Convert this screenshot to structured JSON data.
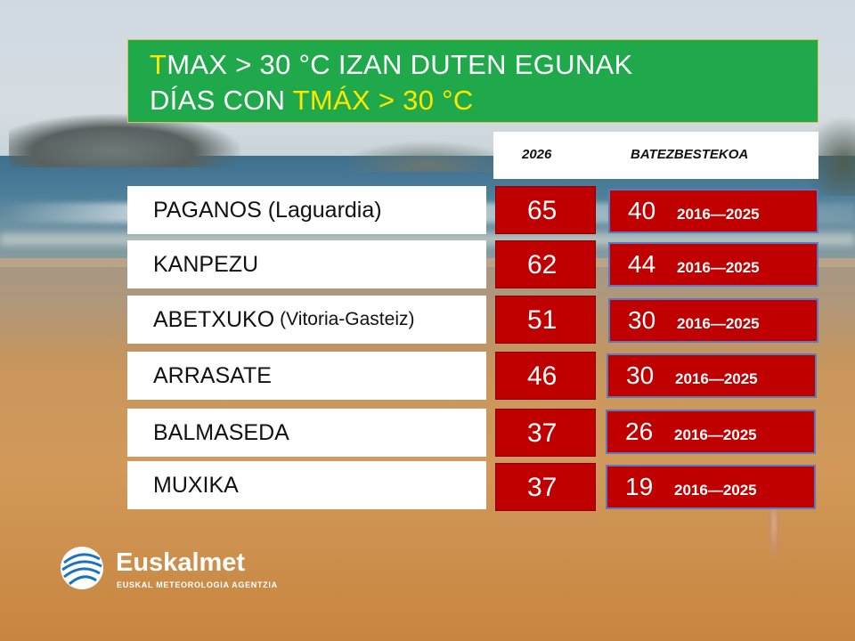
{
  "title": {
    "line1_prefix": "T",
    "line1_rest": "MAX > 30 °C IZAN DUTEN EGUNAK",
    "line2_prefix": "DÍAS CON ",
    "line2_highlight": "TMÁX > 30 °C"
  },
  "header": {
    "year": "2026",
    "average": "BATEZBESTEKOA"
  },
  "rows": [
    {
      "station": "PAGANOS (Laguardia)",
      "sub": "",
      "days": "65",
      "avg": "40",
      "period": "2016—2025"
    },
    {
      "station": "KANPEZU",
      "sub": "",
      "days": "62",
      "avg": "44",
      "period": "2016—2025"
    },
    {
      "station": "ABETXUKO",
      "sub": "(Vitoria-Gasteiz)",
      "days": "51",
      "avg": "30",
      "period": "2016—2025"
    },
    {
      "station": "ARRASATE",
      "sub": "",
      "days": "46",
      "avg": "30",
      "period": "2016—2025"
    },
    {
      "station": "BALMASEDA",
      "sub": "",
      "days": "37",
      "avg": "26",
      "period": "2016—2025"
    },
    {
      "station": "MUXIKA",
      "sub": "",
      "days": "37",
      "avg": "19",
      "period": "2016—2025"
    }
  ],
  "logo": {
    "name": "Euskalmet",
    "tagline": "EUSKAL METEOROLOGIA AGENTZIA",
    "icon": "euskalmet-logo-icon"
  },
  "colors": {
    "title_bg": "#1fa94a",
    "highlight": "#ffe800",
    "value_bg": "#c00000",
    "avg_border": "#5b7bbf"
  }
}
